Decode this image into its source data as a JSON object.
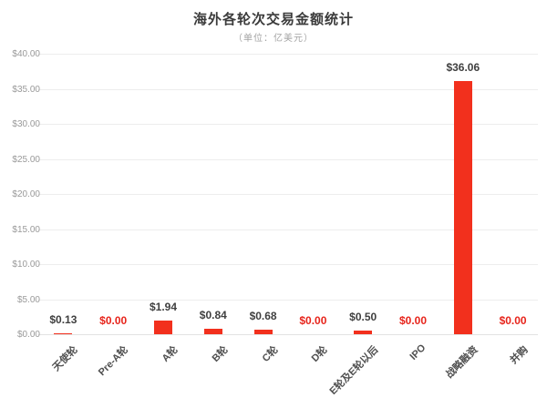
{
  "chart_data": {
    "type": "bar",
    "title": "海外各轮次交易金额统计",
    "subtitle": "（单位：亿美元）",
    "categories": [
      "天使轮",
      "Pre-A轮",
      "A轮",
      "B轮",
      "C轮",
      "D轮",
      "E轮及E轮以后",
      "IPO",
      "战略融资",
      "并购"
    ],
    "values": [
      0.13,
      0,
      1.94,
      0.84,
      0.68,
      0,
      0.5,
      0,
      36.06,
      0
    ],
    "value_labels": [
      "$0.13",
      "$0.00",
      "$1.94",
      "$0.84",
      "$0.68",
      "$0.00",
      "$0.50",
      "$0.00",
      "$36.06",
      "$0.00"
    ],
    "xlabel": "",
    "ylabel": "",
    "ylim": [
      0,
      40
    ],
    "ytick_labels": [
      "$0.00",
      "$5.00",
      "$10.00",
      "$15.00",
      "$20.00",
      "$25.00",
      "$30.00",
      "$35.00",
      "$40.00"
    ],
    "grid": true,
    "legend": "none",
    "colors": {
      "bar": "#f2301d",
      "value_label": "#3f3f3f",
      "zero_value_label": "#e7241b",
      "axis_text": "#999999",
      "category_text": "#4f4f4f",
      "gridline": "#ededed",
      "baseline": "#e2e2e2",
      "background": "#ffffff"
    }
  }
}
